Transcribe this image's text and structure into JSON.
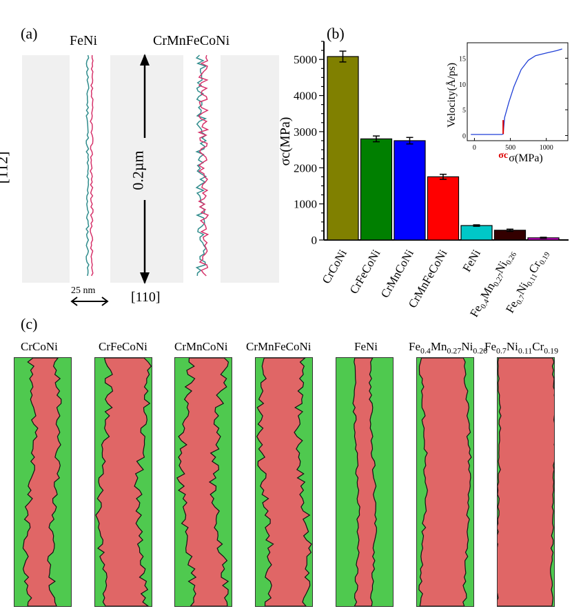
{
  "panel_a": {
    "label": "(a)",
    "alloy_left": "FeNi",
    "alloy_right": "CrMnFeCoNi",
    "vertical_direction": "[11̄2]",
    "length_label": "0.2µm",
    "horizontal_direction": "[110]",
    "scale_label": "25 nm"
  },
  "panel_b": {
    "label": "(b)"
  },
  "panel_c": {
    "label": "(c)",
    "snapshots": [
      {
        "title_html": "CrCoNi"
      },
      {
        "title_html": "CrFeCoNi"
      },
      {
        "title_html": "CrMnCoNi"
      },
      {
        "title_html": "CrMnFeCoNi"
      },
      {
        "title_html": "FeNi"
      },
      {
        "title_html": "Fe<sub>0.4</sub>Mn<sub>0.27</sub>Ni<sub>0.26</sub>"
      },
      {
        "title_html": "Fe<sub>0.7</sub>Ni<sub>0.11</sub>Cr<sub>0.19</sub>"
      }
    ]
  },
  "colors": {
    "line_teal": "#2e8b8b",
    "line_magenta": "#d6326a",
    "green_phase": "#4fc94f",
    "red_phase": "#e06666"
  },
  "chart_data": [
    {
      "type": "bar",
      "ylabel": "σc(MPa)",
      "ylim": [
        0,
        5500
      ],
      "yticks": [
        0,
        1000,
        2000,
        3000,
        4000,
        5000
      ],
      "categories": [
        "CrCoNi",
        "CrFeCoNi",
        "CrMnCoNi",
        "CrMnFeCoNi",
        "FeNi",
        "Fe0.4Mn0.27Ni0.26",
        "Fe0.7Ni0.11Cr0.19"
      ],
      "category_labels_html": [
        "CrCoNi",
        "CrFeCoNi",
        "CrMnCoNi",
        "CrMnFeCoNi",
        "FeNi",
        "Fe<tspan font-size='11' dy='4'>0.4</tspan><tspan dy='-4'>Mn</tspan><tspan font-size='11' dy='4'>0.27</tspan><tspan dy='-4'>Ni</tspan><tspan font-size='11' dy='4'>0.26</tspan>",
        "Fe<tspan font-size='11' dy='4'>0.7</tspan><tspan dy='-4'>Ni</tspan><tspan font-size='11' dy='4'>0.11</tspan><tspan dy='-4'>Cr</tspan><tspan font-size='11' dy='4'>0.19</tspan>"
      ],
      "values": [
        5080,
        2800,
        2750,
        1750,
        400,
        270,
        60
      ],
      "errors": [
        150,
        80,
        90,
        70,
        20,
        30,
        15
      ],
      "colors": [
        "#808000",
        "#007f00",
        "#0000ff",
        "#ff0000",
        "#00c8c8",
        "#330000",
        "#d000d0"
      ]
    },
    {
      "type": "line",
      "ylabel": "Velocity(Å/ps)",
      "xlabel": "σ(MPa)",
      "xlim": [
        -100,
        1300
      ],
      "ylim": [
        -1,
        18
      ],
      "xticks": [
        0,
        500,
        1000
      ],
      "yticks": [
        0,
        5,
        10,
        15
      ],
      "marker_label": "σc",
      "marker_x": 400,
      "x": [
        -50,
        380,
        400,
        420,
        480,
        550,
        650,
        750,
        850,
        1000,
        1150,
        1220
      ],
      "y": [
        0.2,
        0.2,
        0.3,
        3.5,
        6.5,
        9.5,
        12.8,
        14.6,
        15.5,
        16.0,
        16.5,
        16.8
      ]
    }
  ]
}
